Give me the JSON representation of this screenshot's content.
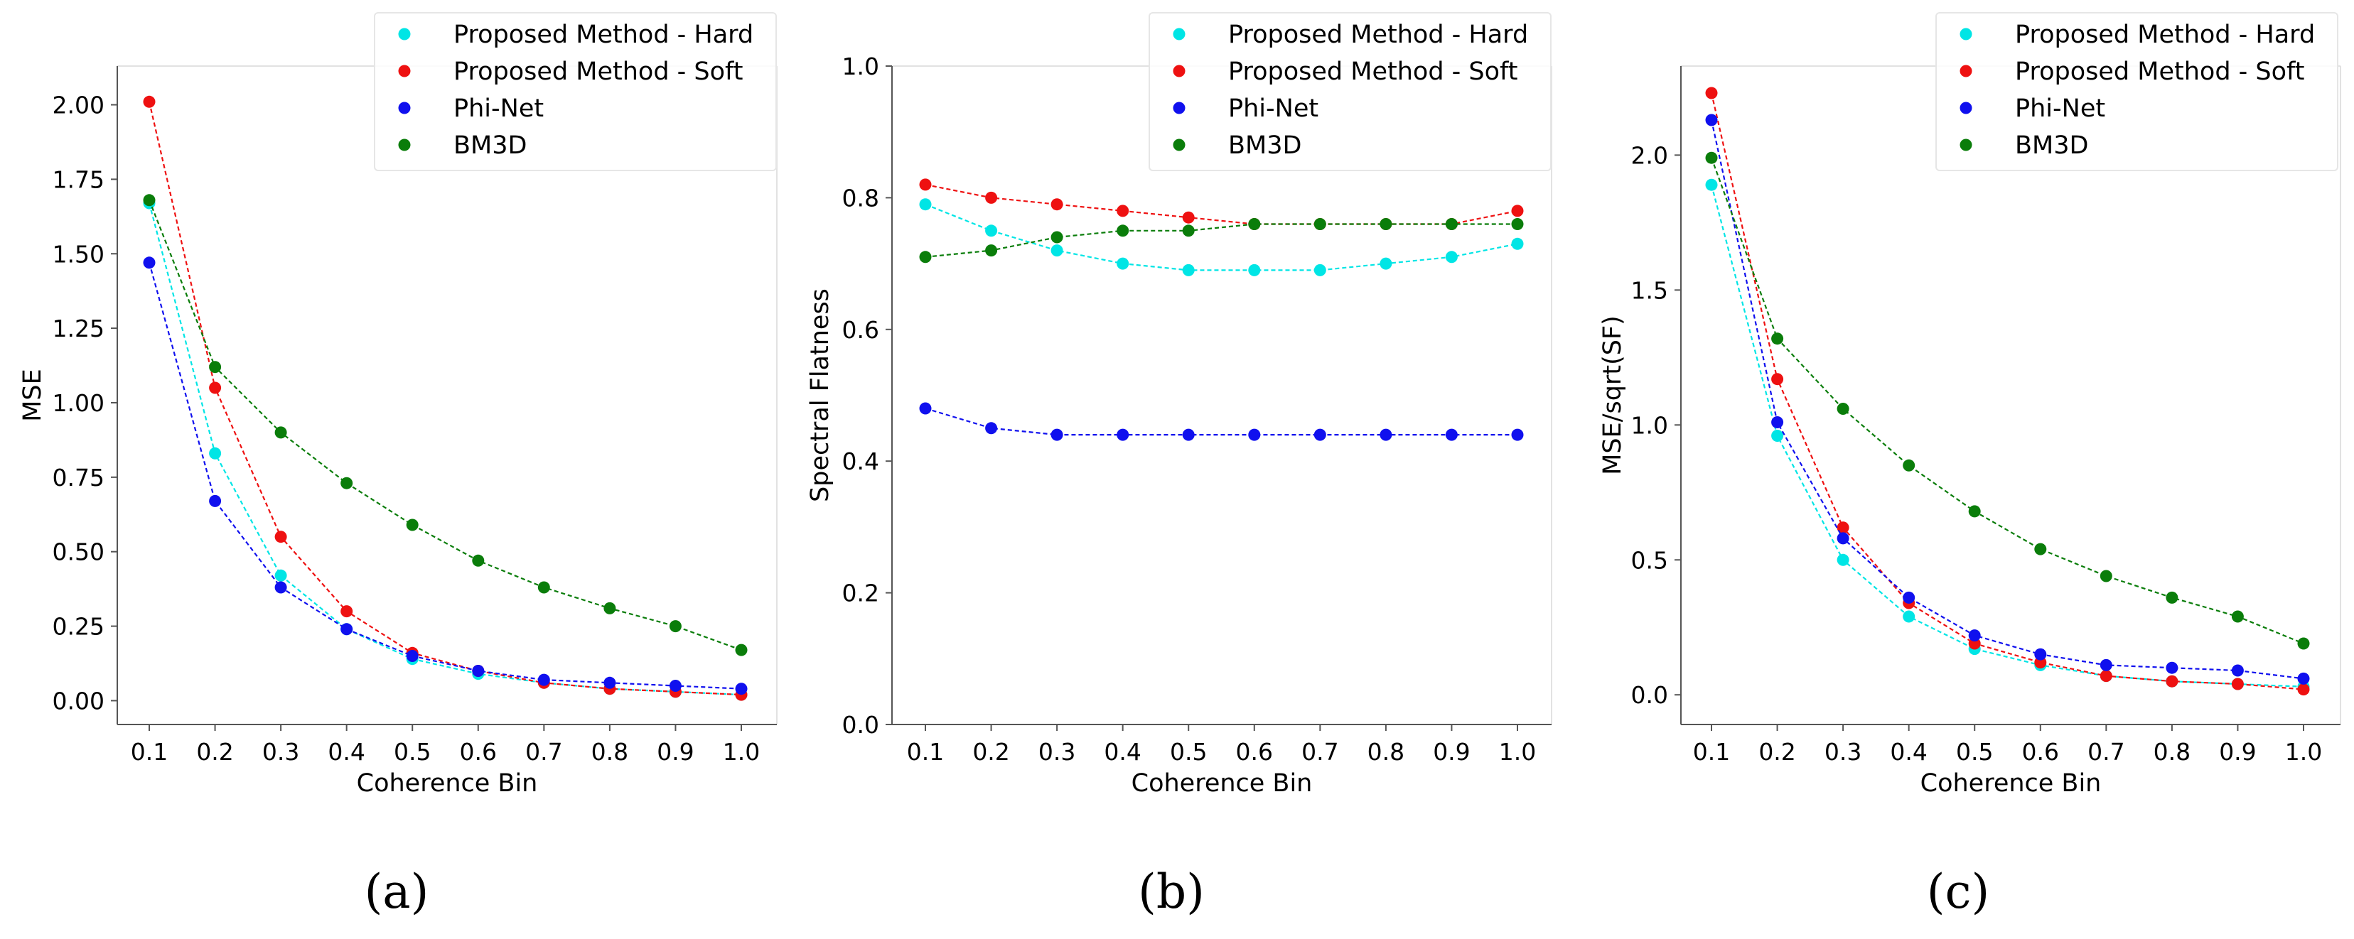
{
  "panel_captions": [
    "(a)",
    "(b)",
    "(c)"
  ],
  "colors": {
    "Proposed Method - Hard": "#00e5e5",
    "Proposed Method - Soft": "#ee1111",
    "Phi-Net": "#1010ee",
    "BM3D": "#0a7d0a"
  },
  "chart_data": [
    {
      "type": "line",
      "markers": true,
      "line_style": "dashed",
      "xlabel": "Coherence Bin",
      "ylabel": "MSE",
      "x": [
        0.1,
        0.2,
        0.3,
        0.4,
        0.5,
        0.6,
        0.7,
        0.8,
        0.9,
        1.0
      ],
      "xticks": [
        "0.1",
        "0.2",
        "0.3",
        "0.4",
        "0.5",
        "0.6",
        "0.7",
        "0.8",
        "0.9",
        "1.0"
      ],
      "ylim": [
        -0.08,
        2.13
      ],
      "yticks": [
        "0.00",
        "0.25",
        "0.50",
        "0.75",
        "1.00",
        "1.25",
        "1.50",
        "1.75",
        "2.00"
      ],
      "legend_position": "top-right",
      "series": [
        {
          "name": "Proposed Method - Hard",
          "values": [
            1.67,
            0.83,
            0.42,
            0.24,
            0.14,
            0.09,
            0.06,
            0.04,
            0.03,
            0.02
          ]
        },
        {
          "name": "Proposed Method - Soft",
          "values": [
            2.01,
            1.05,
            0.55,
            0.3,
            0.16,
            0.1,
            0.06,
            0.04,
            0.03,
            0.02
          ]
        },
        {
          "name": "Phi-Net",
          "values": [
            1.47,
            0.67,
            0.38,
            0.24,
            0.15,
            0.1,
            0.07,
            0.06,
            0.05,
            0.04
          ]
        },
        {
          "name": "BM3D",
          "values": [
            1.68,
            1.12,
            0.9,
            0.73,
            0.59,
            0.47,
            0.38,
            0.31,
            0.25,
            0.17
          ]
        }
      ]
    },
    {
      "type": "line",
      "markers": true,
      "line_style": "dashed",
      "xlabel": "Coherence Bin",
      "ylabel": "Spectral Flatness",
      "x": [
        0.1,
        0.2,
        0.3,
        0.4,
        0.5,
        0.6,
        0.7,
        0.8,
        0.9,
        1.0
      ],
      "xticks": [
        "0.1",
        "0.2",
        "0.3",
        "0.4",
        "0.5",
        "0.6",
        "0.7",
        "0.8",
        "0.9",
        "1.0"
      ],
      "ylim": [
        0.0,
        1.0
      ],
      "yticks": [
        "0.0",
        "0.2",
        "0.4",
        "0.6",
        "0.8",
        "1.0"
      ],
      "legend_position": "top-right",
      "series": [
        {
          "name": "Proposed Method - Hard",
          "values": [
            0.79,
            0.75,
            0.72,
            0.7,
            0.69,
            0.69,
            0.69,
            0.7,
            0.71,
            0.73
          ]
        },
        {
          "name": "Proposed Method - Soft",
          "values": [
            0.82,
            0.8,
            0.79,
            0.78,
            0.77,
            0.76,
            0.76,
            0.76,
            0.76,
            0.78
          ]
        },
        {
          "name": "Phi-Net",
          "values": [
            0.48,
            0.45,
            0.44,
            0.44,
            0.44,
            0.44,
            0.44,
            0.44,
            0.44,
            0.44
          ]
        },
        {
          "name": "BM3D",
          "values": [
            0.71,
            0.72,
            0.74,
            0.75,
            0.75,
            0.76,
            0.76,
            0.76,
            0.76,
            0.76
          ]
        }
      ]
    },
    {
      "type": "line",
      "markers": true,
      "line_style": "dashed",
      "xlabel": "Coherence Bin",
      "ylabel": "MSE/sqrt(SF)",
      "x": [
        0.1,
        0.2,
        0.3,
        0.4,
        0.5,
        0.6,
        0.7,
        0.8,
        0.9,
        1.0
      ],
      "xticks": [
        "0.1",
        "0.2",
        "0.3",
        "0.4",
        "0.5",
        "0.6",
        "0.7",
        "0.8",
        "0.9",
        "1.0"
      ],
      "ylim": [
        -0.11,
        2.33
      ],
      "yticks": [
        "0.0",
        "0.5",
        "1.0",
        "1.5",
        "2.0"
      ],
      "legend_position": "top-right",
      "series": [
        {
          "name": "Proposed Method - Hard",
          "values": [
            1.89,
            0.96,
            0.5,
            0.29,
            0.17,
            0.11,
            0.07,
            0.05,
            0.04,
            0.03
          ]
        },
        {
          "name": "Proposed Method - Soft",
          "values": [
            2.23,
            1.17,
            0.62,
            0.34,
            0.19,
            0.12,
            0.07,
            0.05,
            0.04,
            0.02
          ]
        },
        {
          "name": "Phi-Net",
          "values": [
            2.13,
            1.01,
            0.58,
            0.36,
            0.22,
            0.15,
            0.11,
            0.1,
            0.09,
            0.06
          ]
        },
        {
          "name": "BM3D",
          "values": [
            1.99,
            1.32,
            1.06,
            0.85,
            0.68,
            0.54,
            0.44,
            0.36,
            0.29,
            0.19
          ]
        }
      ]
    }
  ]
}
